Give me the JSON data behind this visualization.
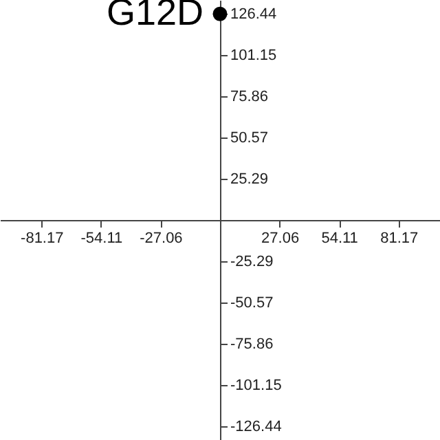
{
  "chart_data": {
    "type": "scatter",
    "x": [
      0
    ],
    "series": [
      {
        "color": "#000000",
        "values": [
          126.44
        ]
      }
    ],
    "xlim": [
      -100,
      100
    ],
    "ylim": [
      -135,
      135
    ],
    "xticks": [
      -81.17,
      -54.11,
      -27.06,
      27.06,
      54.11,
      81.17
    ],
    "yticks": [
      -126.44,
      -101.15,
      -75.86,
      -50.57,
      -25.29,
      25.29,
      50.57,
      75.86,
      101.15,
      126.44
    ],
    "grid": false,
    "marker": "circle",
    "annotations": [
      {
        "text": "G12D",
        "x": 0,
        "y": 126.44
      }
    ]
  }
}
